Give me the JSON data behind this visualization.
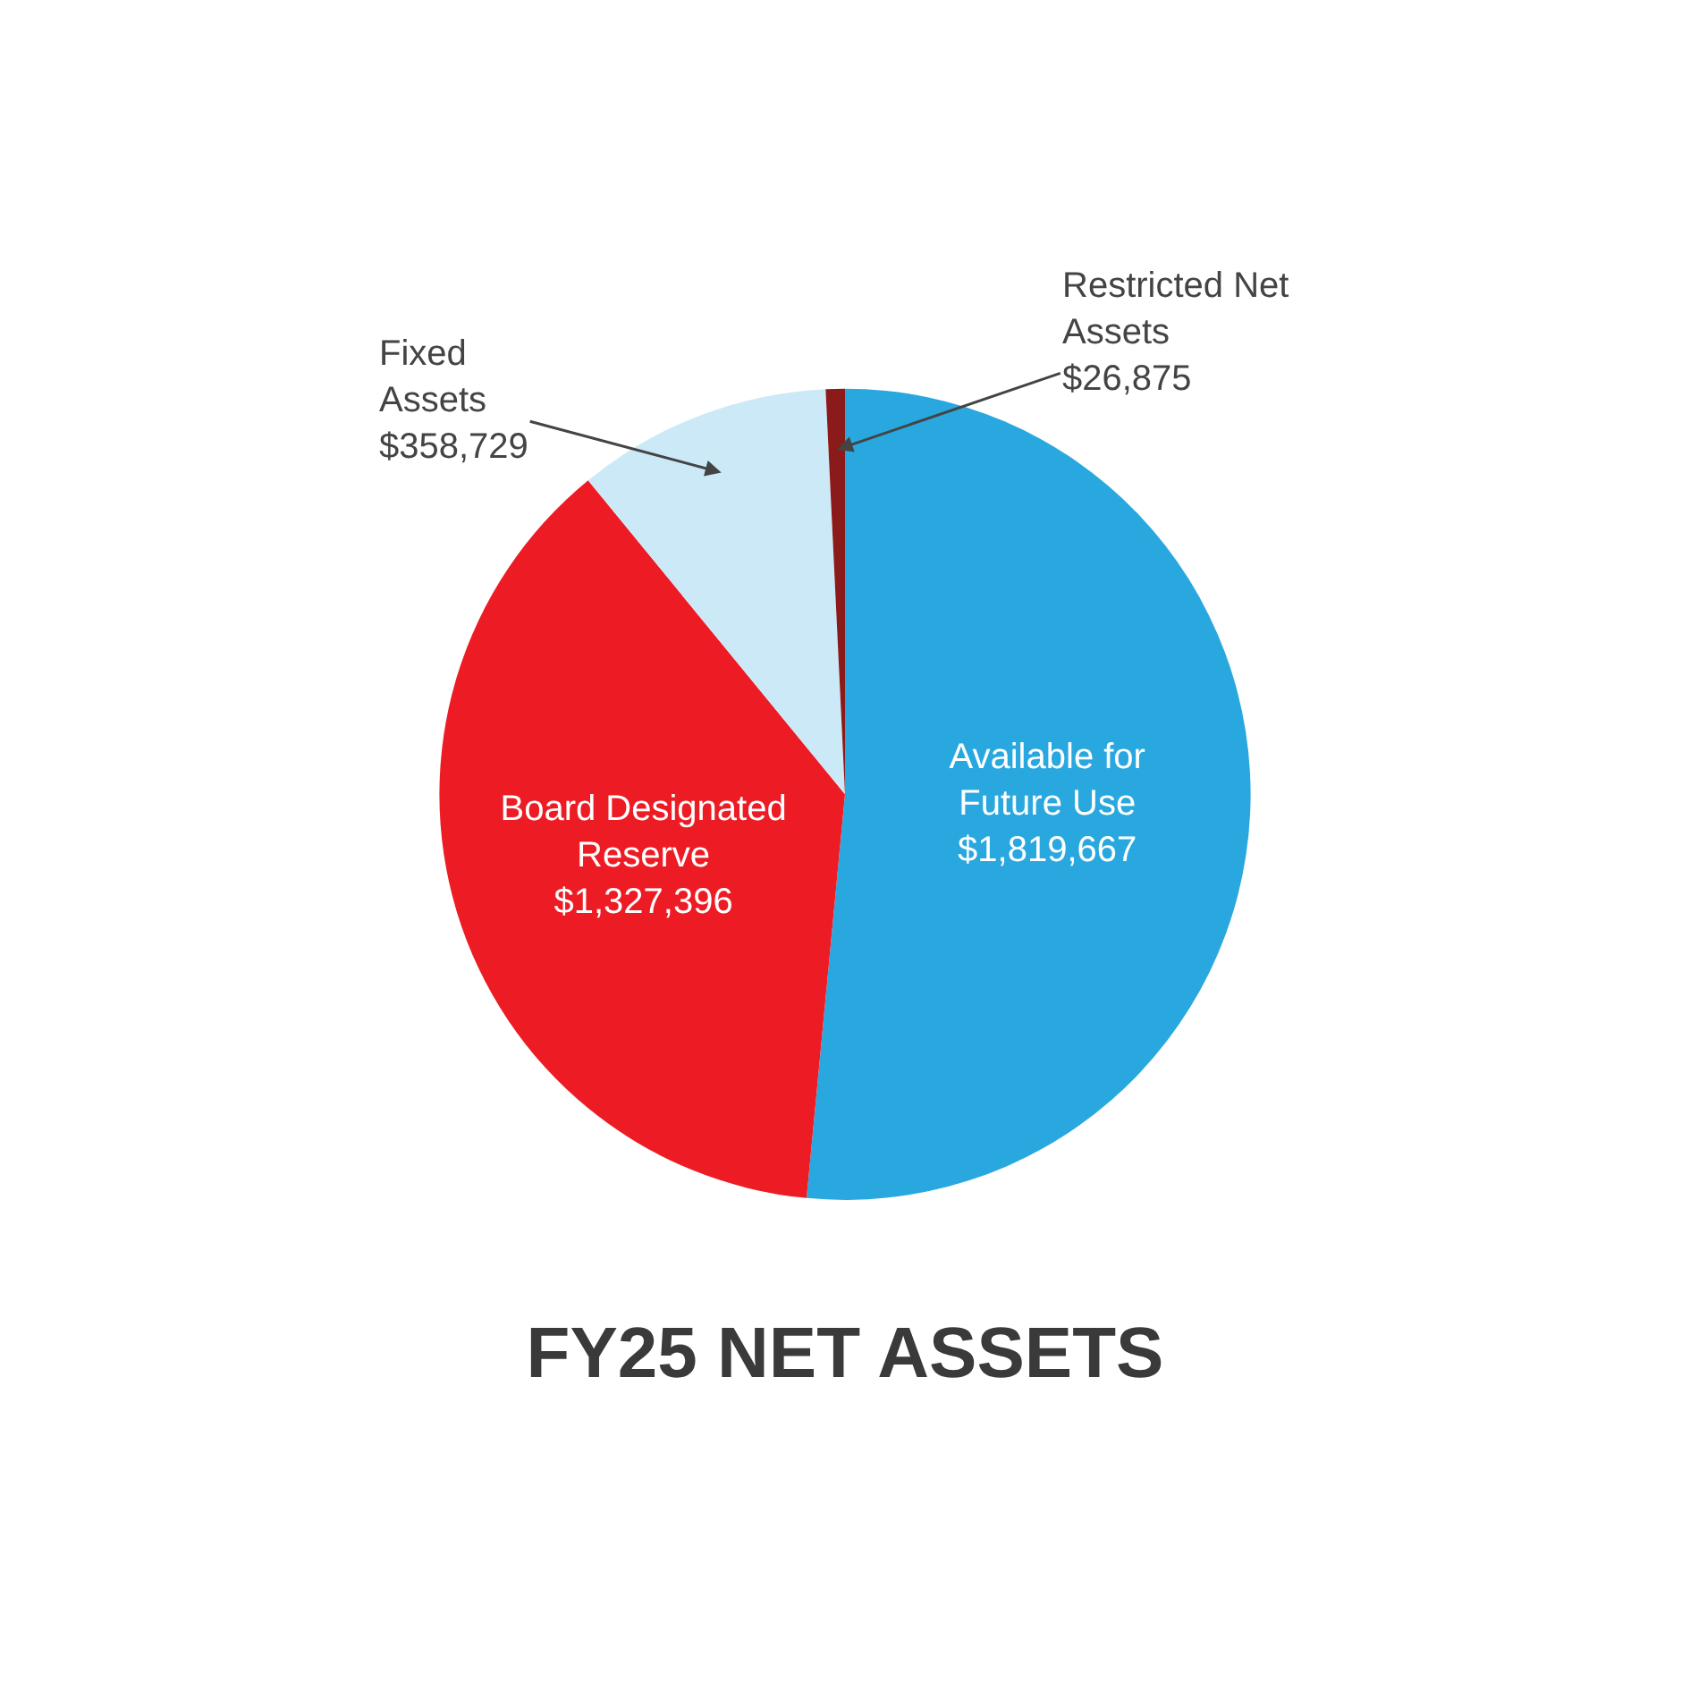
{
  "chart_data": {
    "type": "pie",
    "title": "FY25 NET ASSETS",
    "categories": [
      "Available for\nFuture Use",
      "Board Designated\nReserve",
      "Fixed\nAssets",
      "Restricted Net\nAssets"
    ],
    "values": [
      1819667,
      1327396,
      358729,
      26875
    ],
    "value_labels": [
      "$1,819,667",
      "$1,327,396",
      "$358,729",
      "$26,875"
    ],
    "colors": [
      "#29a8e0",
      "#ed1c24",
      "#cce9f8",
      "#8b1a1a"
    ]
  }
}
